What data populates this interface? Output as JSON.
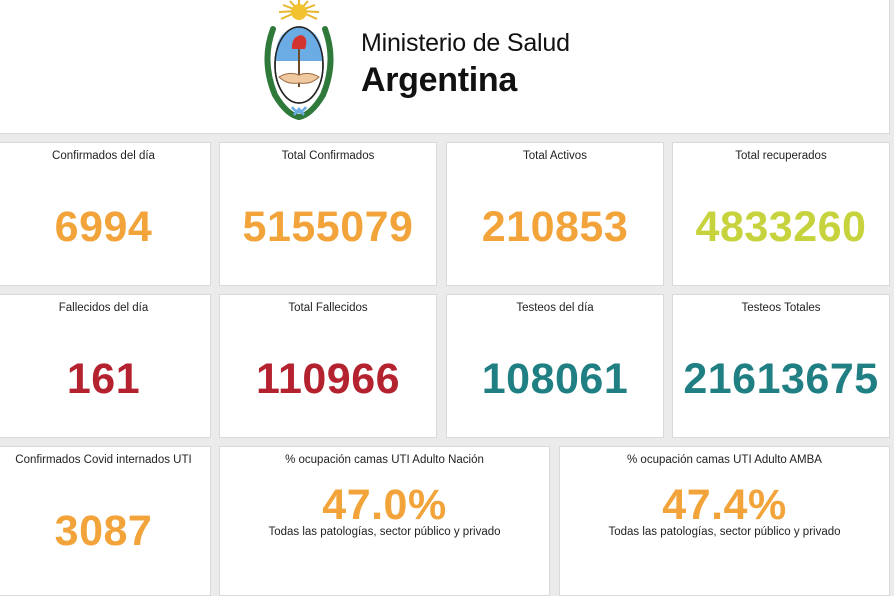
{
  "header": {
    "ministry": "Ministerio de Salud",
    "country": "Argentina",
    "logo_icon": "argentina-coat-of-arms-icon"
  },
  "colors": {
    "orange": "#f2a33a",
    "lime": "#c7d33c",
    "red": "#b5222f",
    "teal": "#1f7f82"
  },
  "stats": {
    "confirmados_dia": {
      "label": "Confirmados del día",
      "value": "6994"
    },
    "total_confirmados": {
      "label": "Total Confirmados",
      "value": "5155079"
    },
    "total_activos": {
      "label": "Total Activos",
      "value": "210853"
    },
    "total_recuperados": {
      "label": "Total recuperados",
      "value": "4833260"
    },
    "fallecidos_dia": {
      "label": "Fallecidos del día",
      "value": "161"
    },
    "total_fallecidos": {
      "label": "Total Fallecidos",
      "value": "110966"
    },
    "testeos_dia": {
      "label": "Testeos del día",
      "value": "108061"
    },
    "testeos_totales": {
      "label": "Testeos Totales",
      "value": "21613675"
    },
    "internados_uti": {
      "label": "Confirmados Covid internados UTI",
      "value": "3087"
    },
    "ocupacion_nacion": {
      "label": "% ocupación camas UTI Adulto Nación",
      "value": "47.0%",
      "sub": "Todas las patologías, sector público y privado"
    },
    "ocupacion_amba": {
      "label": "% ocupación camas UTI Adulto AMBA",
      "value": "47.4%",
      "sub": "Todas las patologías, sector público y privado"
    }
  }
}
